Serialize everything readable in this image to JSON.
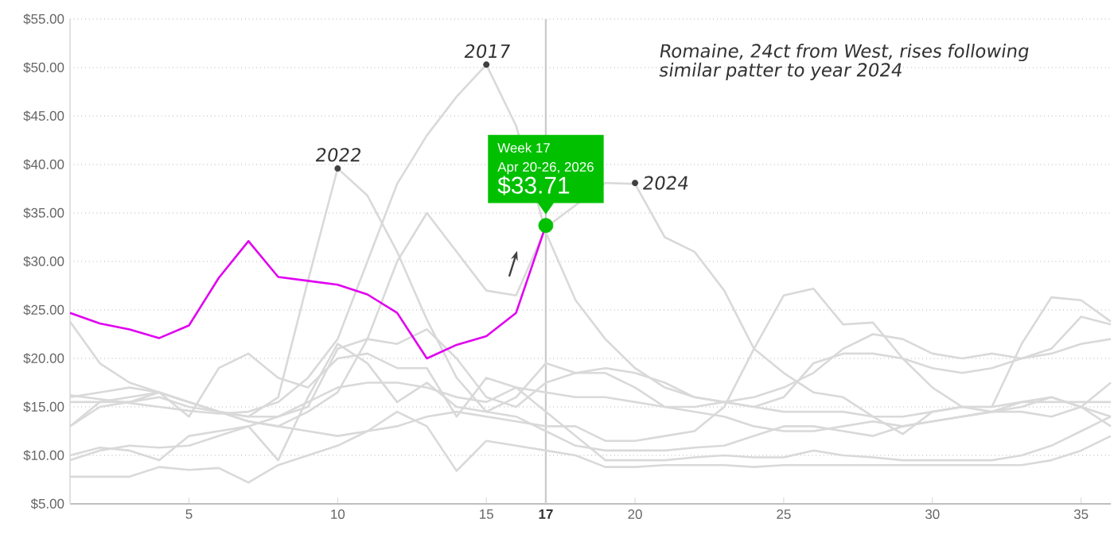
{
  "chart_data": {
    "type": "line",
    "x": [
      1,
      2,
      3,
      4,
      5,
      6,
      7,
      8,
      9,
      10,
      11,
      12,
      13,
      14,
      15,
      16,
      17,
      18,
      19,
      20,
      21,
      22,
      23,
      24,
      25,
      26,
      27,
      28,
      29,
      30,
      31,
      32,
      33,
      34,
      35,
      36
    ],
    "xlim": [
      1,
      36
    ],
    "xticks": [
      5,
      10,
      15,
      17,
      20,
      25,
      30,
      35
    ],
    "ylim": [
      5,
      55
    ],
    "yticks": [
      {
        "value": 5,
        "label": "$5.00"
      },
      {
        "value": 10,
        "label": "$10.00"
      },
      {
        "value": 15,
        "label": "$15.00"
      },
      {
        "value": 20,
        "label": "$20.00"
      },
      {
        "value": 25,
        "label": "$25.00"
      },
      {
        "value": 30,
        "label": "$30.00"
      },
      {
        "value": 35,
        "label": "$35.00"
      },
      {
        "value": 40,
        "label": "$40.00"
      },
      {
        "value": 45,
        "label": "$45.00"
      },
      {
        "value": 50,
        "label": "$50.00"
      },
      {
        "value": 55,
        "label": "$55.00"
      }
    ],
    "grid": "y",
    "series": [
      {
        "color": "#d9d9d9",
        "values": [
          16.2,
          15.8,
          15.4,
          15.0,
          14.6,
          14.3,
          14.5,
          15.5,
          18,
          22,
          30,
          38,
          43,
          47,
          50.3,
          44,
          33,
          26,
          22,
          19,
          17,
          16,
          15.5,
          15,
          14.5,
          14.5,
          14.5,
          14,
          14,
          14.5,
          15,
          15,
          15.5,
          15.5,
          15.5,
          15.5
        ]
      },
      {
        "color": "#d9d9d9",
        "values": [
          23.8,
          19.5,
          17.5,
          16.5,
          15.5,
          14.5,
          14,
          16,
          28,
          39.6,
          36.8,
          31,
          24,
          18,
          14.5,
          16,
          19.5,
          18.5,
          18.5,
          17,
          15,
          14.5,
          14,
          13,
          12.5,
          12.5,
          13,
          13.5,
          13,
          13.5,
          14,
          14.5,
          14.5,
          14,
          15,
          17.5
        ]
      },
      {
        "color": "#d9d9d9",
        "values": [
          13,
          15,
          15.5,
          16.5,
          15.5,
          14.5,
          13.5,
          13,
          14.5,
          16.5,
          22,
          30,
          35,
          31,
          27,
          26.5,
          33.5,
          null,
          38.1,
          38,
          32.5,
          31,
          27,
          21,
          18.5,
          16.5,
          16,
          14,
          12.2,
          14.5,
          15,
          14.5,
          15.5,
          16,
          15,
          14
        ]
      },
      {
        "color": "#d9d9d9",
        "values": [
          16,
          16.5,
          17,
          16.5,
          15.5,
          14.5,
          14,
          14,
          15,
          21,
          22,
          21.5,
          23,
          20,
          16,
          15,
          17.5,
          18.5,
          19,
          18.5,
          17.5,
          16,
          15.5,
          15,
          16,
          19.5,
          20.5,
          20.5,
          20,
          19,
          18.5,
          19,
          20,
          20.5,
          21.5,
          22
        ]
      },
      {
        "color": "#d9d9d9",
        "values": [
          9.5,
          10.5,
          11,
          10.8,
          11,
          12,
          13,
          14,
          15.5,
          17,
          17.5,
          17.5,
          17,
          16,
          15.5,
          17,
          16.5,
          16,
          16,
          15.5,
          15,
          15,
          15.5,
          16,
          17,
          18.5,
          21,
          22.5,
          22,
          20.5,
          20,
          20.5,
          20,
          21,
          24.3,
          23.5
        ]
      },
      {
        "color": "#d9d9d9",
        "values": [
          15.5,
          15.5,
          15.5,
          16,
          15,
          14.5,
          13.5,
          13,
          12.5,
          12,
          12.5,
          13,
          14,
          14.5,
          14,
          13.5,
          13,
          13,
          11.5,
          11.5,
          12,
          12.5,
          15,
          21,
          26.5,
          27.2,
          23.5,
          23.7,
          20,
          17,
          15,
          15,
          21.5,
          26.3,
          26,
          23.8
        ]
      },
      {
        "color": "#d9d9d9",
        "values": [
          7.8,
          7.8,
          7.8,
          8.8,
          8.5,
          8.7,
          7.2,
          9,
          10,
          11,
          12.5,
          14.5,
          13,
          8.4,
          11.5,
          11,
          10.5,
          10,
          8.8,
          8.8,
          9,
          9,
          9,
          8.8,
          9,
          9,
          9,
          9,
          9,
          9,
          9,
          9,
          9,
          9.5,
          10.5,
          12
        ]
      },
      {
        "color": "#d9d9d9",
        "values": [
          10,
          10.8,
          10.5,
          9.5,
          12,
          12.5,
          13,
          9.5,
          16,
          21.5,
          19.5,
          15.5,
          17.5,
          15,
          14.5,
          14,
          12.5,
          11,
          10.5,
          10.5,
          10.5,
          10.8,
          11,
          12,
          13,
          13,
          12.5,
          12,
          13,
          13.5,
          14,
          14.5,
          15,
          16,
          15,
          13
        ]
      },
      {
        "color": "#d9d9d9",
        "values": [
          13,
          15.5,
          16,
          16.5,
          14,
          19,
          20.5,
          18,
          17,
          20,
          20.5,
          19,
          19,
          14,
          18,
          17,
          14.5,
          12,
          9.5,
          9.5,
          9.5,
          9.8,
          10,
          9.8,
          9.8,
          10.5,
          10,
          9.8,
          9.5,
          9.5,
          9.5,
          9.5,
          10,
          11,
          12.5,
          14
        ]
      },
      {
        "color": "#e000f0",
        "x": [
          1,
          2,
          3,
          4,
          5,
          6,
          7,
          8,
          9,
          10,
          11,
          12,
          13,
          14,
          15,
          16,
          17
        ],
        "values": [
          24.7,
          23.6,
          23.0,
          22.1,
          23.4,
          28.3,
          32.1,
          28.4,
          28.0,
          27.6,
          26.6,
          24.7,
          20.0,
          21.4,
          22.3,
          24.7,
          33.71
        ]
      },
      {
        "type": "scatter",
        "color": "#00c000",
        "x": [
          17
        ],
        "values": [
          33.71
        ]
      }
    ],
    "ref_lines": [
      {
        "axis": "x",
        "value": 17,
        "color": "#cccccc"
      }
    ],
    "annotations": [
      {
        "text": "2017",
        "x": 15,
        "y": 50.3
      },
      {
        "text": "2022",
        "x": 10,
        "y": 39.6
      },
      {
        "text": "2024",
        "x": 20,
        "y": 38.1
      },
      "Week 17",
      "Apr 20-26, 2026",
      {
        "text": "$33.71",
        "x": 17,
        "y": 33.71
      },
      "Romaine, 24ct from West, rises following similar patter to year 2024"
    ]
  }
}
